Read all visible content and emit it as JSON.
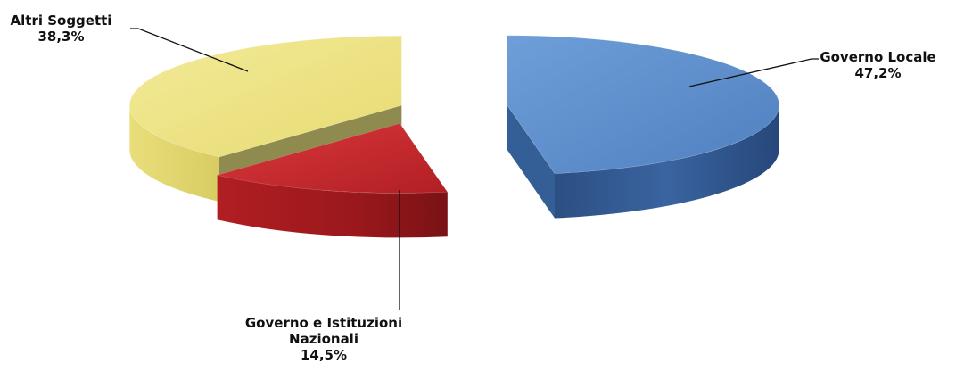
{
  "chart_data": {
    "type": "pie",
    "title": "",
    "labels": [
      "Governo Locale",
      "Governo e Istituzioni Nazionali",
      "Altri Soggetti"
    ],
    "values": [
      47.2,
      14.5,
      38.3
    ],
    "value_labels": [
      "47,2%",
      "14,5%",
      "38,3%"
    ],
    "colors": [
      "#5b8fcf",
      "#c5262a",
      "#ece27e"
    ],
    "legend": "none",
    "style": "3d-exploded",
    "slice_label_lines": [
      [
        "Governo Locale",
        "47,2%"
      ],
      [
        "Governo e Istituzioni",
        "Nazionali",
        "14,5%"
      ],
      [
        "Altri Soggetti",
        "38,3%"
      ]
    ]
  }
}
